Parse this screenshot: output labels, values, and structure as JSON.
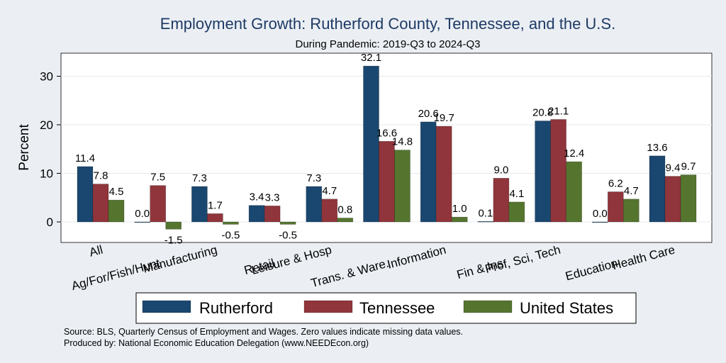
{
  "chart_data": {
    "type": "bar",
    "title": "Employment Growth: Rutherford County, Tennessee, and the U.S.",
    "subtitle": "During Pandemic: 2019-Q3 to 2024-Q3",
    "ylabel": "Percent",
    "xlabel": "",
    "ylim": [
      -4,
      36
    ],
    "yticks": [
      0,
      10,
      20,
      30
    ],
    "grid": true,
    "legend_position": "bottom",
    "categories": [
      "All",
      "Ag/For/Fish/Hunt",
      "Manufacturing",
      "Retail",
      "Leisure & Hosp",
      "Trans. & Ware.",
      "Information",
      "Fin & Ins",
      "Prof, Sci, Tech",
      "Education",
      "Health Care"
    ],
    "series": [
      {
        "name": "Rutherford",
        "color": "#1a476f",
        "values": [
          11.4,
          0.0,
          7.3,
          3.4,
          7.3,
          32.1,
          20.6,
          0.1,
          20.8,
          0.0,
          13.6
        ]
      },
      {
        "name": "Tennessee",
        "color": "#90353b",
        "values": [
          7.8,
          7.5,
          1.7,
          3.3,
          4.7,
          16.6,
          19.7,
          9.0,
          21.1,
          6.2,
          9.4
        ]
      },
      {
        "name": "United States",
        "color": "#55752f",
        "values": [
          4.5,
          -1.5,
          -0.5,
          -0.5,
          0.8,
          14.8,
          1.0,
          4.1,
          12.4,
          4.7,
          9.7
        ]
      }
    ],
    "notes": [
      "Source: BLS, Quarterly Census of Employment and Wages. Zero values indicate missing data values.",
      "Produced by: National Economic Education Delegation (www.NEEDEcon.org)"
    ]
  }
}
